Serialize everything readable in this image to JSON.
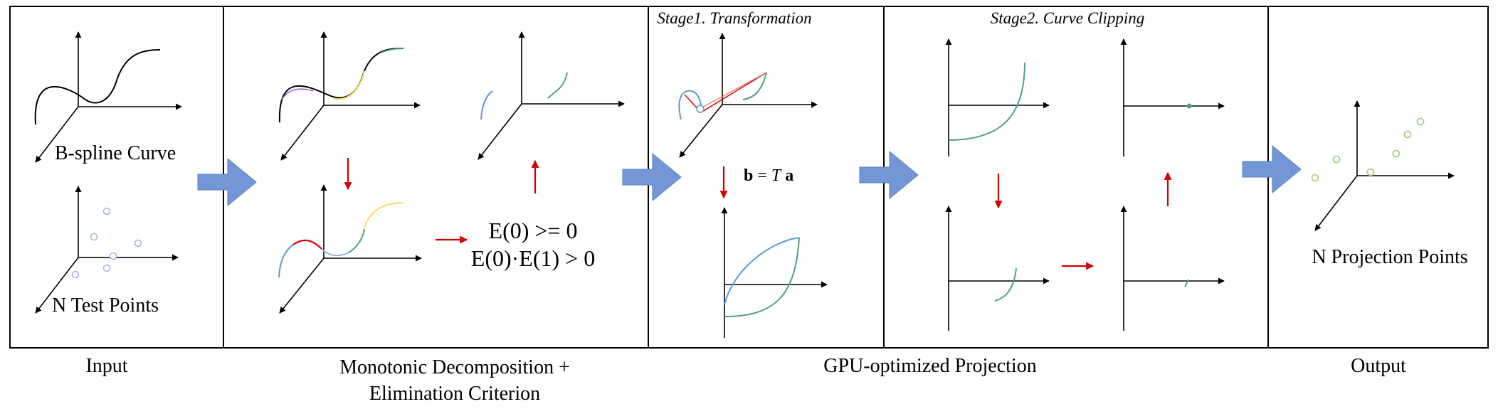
{
  "panels": {
    "input": {
      "curve_label": "B-spline Curve",
      "points_label": "N Test Points",
      "caption": "Input"
    },
    "decomposition": {
      "equation_line1": "E(0) >= 0",
      "equation_line2": "E(0)·E(1) > 0",
      "caption_line1": "Monotonic Decomposition +",
      "caption_line2": "Elimination Criterion"
    },
    "projection": {
      "stage1_title": "Stage1. Transformation",
      "stage1_eq_b": "b",
      "stage1_eq_eq": " = ",
      "stage1_eq_T": "T",
      "stage1_eq_a": " a",
      "stage2_title": "Stage2. Curve Clipping",
      "caption": "GPU-optimized Projection"
    },
    "output": {
      "points_label": "N Projection Points",
      "caption": "Output"
    }
  },
  "colors": {
    "flow_arrow": "#7397d6",
    "step_arrow": "#d00000",
    "blue_curve": "#5b9bd5",
    "green_curve": "#4aa37a",
    "yellow_curve": "#ffd966",
    "red_curve": "#e0000a",
    "purple_curve": "#8e5fc7",
    "orange_line": "#d9714a",
    "test_point": "#9cb5e8",
    "projection_point": "#a9d18e"
  }
}
